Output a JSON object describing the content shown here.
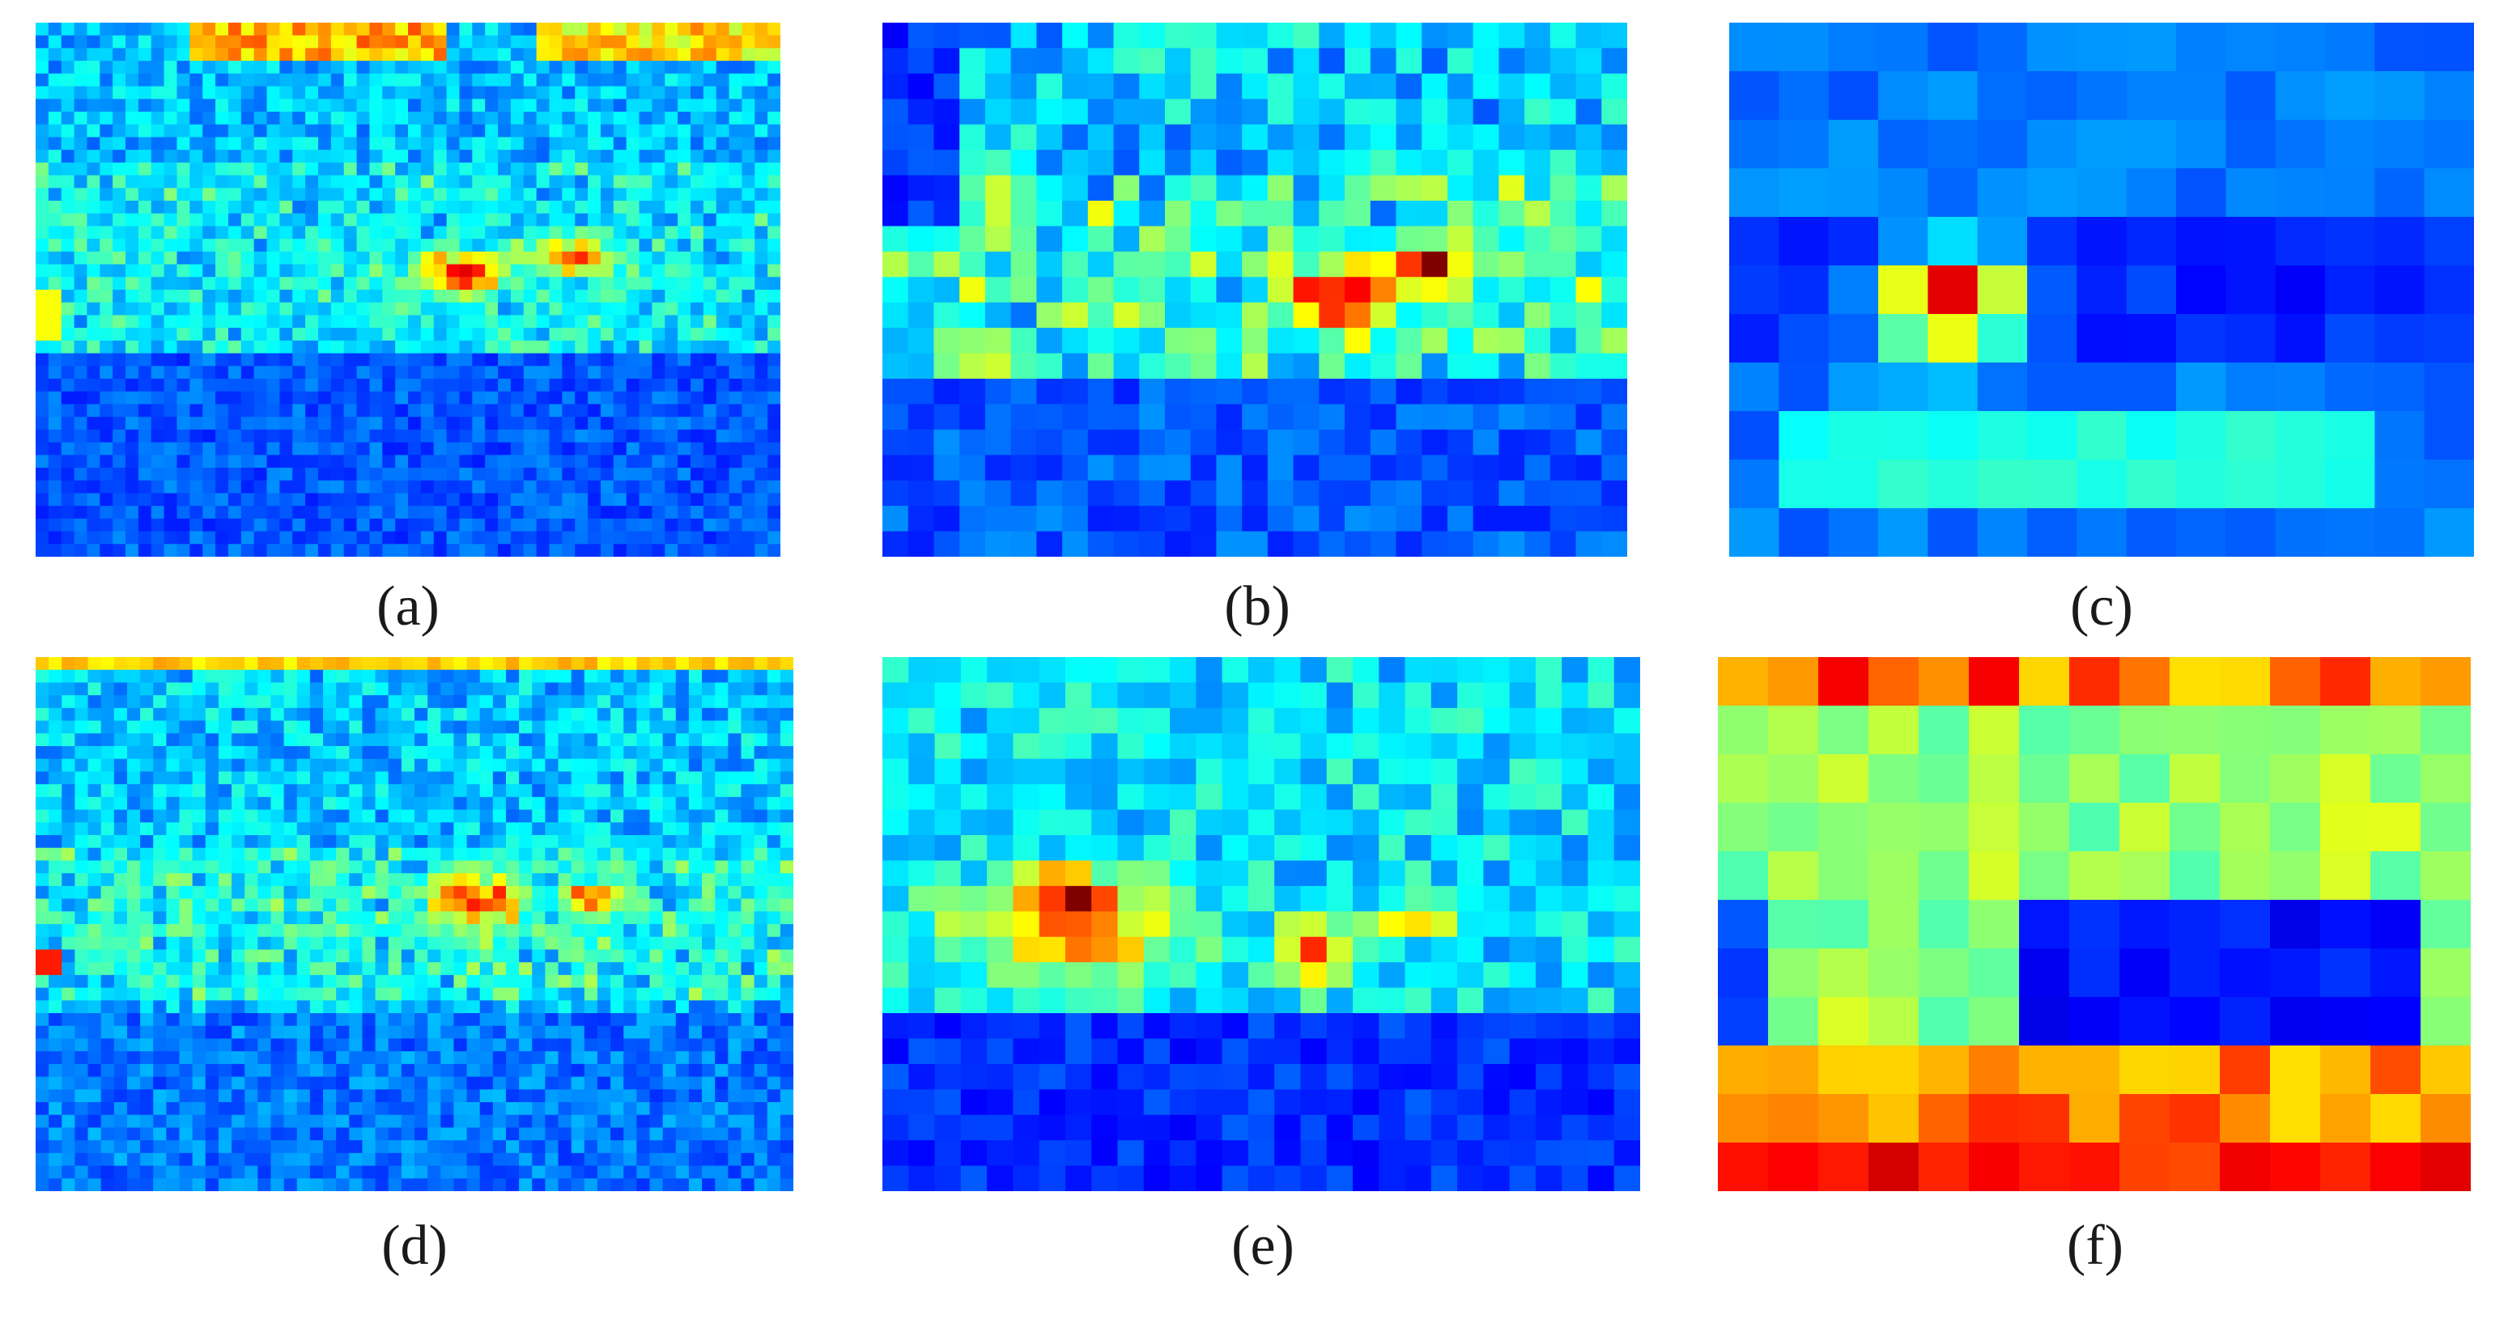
{
  "figure": {
    "colormap": "jet",
    "panels": [
      {
        "id": "a",
        "label": "(a)",
        "rows": 42,
        "cols": 58,
        "profile": "fine-top"
      },
      {
        "id": "b",
        "label": "(b)",
        "rows": 21,
        "cols": 29,
        "profile": "medium-top"
      },
      {
        "id": "c",
        "label": "(c)",
        "rows": 11,
        "cols": 15,
        "profile": "coarse-top"
      },
      {
        "id": "d",
        "label": "(d)",
        "rows": 42,
        "cols": 58,
        "profile": "fine-bottom"
      },
      {
        "id": "e",
        "label": "(e)",
        "rows": 21,
        "cols": 29,
        "profile": "medium-bottom"
      },
      {
        "id": "f",
        "label": "(f)",
        "rows": 11,
        "cols": 15,
        "profile": "coarse-bottom"
      }
    ]
  }
}
